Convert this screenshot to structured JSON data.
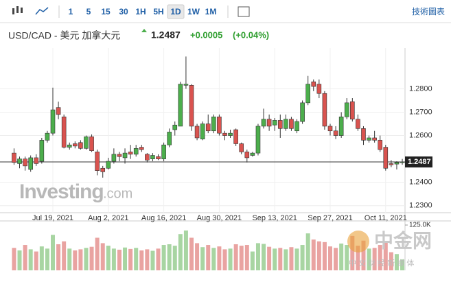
{
  "toolbar": {
    "intervals": [
      "1",
      "5",
      "15",
      "30",
      "1H",
      "5H",
      "1D",
      "1W",
      "1M"
    ],
    "active": "1D",
    "chart_button": "技術圖表"
  },
  "header": {
    "symbol": "USD/CAD - 美元 加拿大元",
    "change": "+0.0005",
    "change_percent": "(+0.04%)"
  },
  "watermarks": {
    "investing": "Investing",
    "investing_suffix": ".com",
    "cngold": "中金网",
    "cngold_sub": "中 文 财 经 新 媒 体"
  },
  "chart_data": {
    "type": "candlestick",
    "last_price": 1.2487,
    "categories": [
      null,
      null,
      null,
      null,
      null,
      null,
      null,
      "Jul 19, 2021",
      null,
      null,
      null,
      null,
      null,
      null,
      null,
      null,
      null,
      "Aug 2, 2021",
      null,
      null,
      null,
      null,
      null,
      null,
      null,
      null,
      null,
      "Aug 16, 2021",
      null,
      null,
      null,
      null,
      null,
      null,
      null,
      null,
      null,
      "Aug 30, 2021",
      null,
      null,
      null,
      null,
      null,
      null,
      null,
      null,
      null,
      "Sep 13, 2021",
      null,
      null,
      null,
      null,
      null,
      null,
      null,
      null,
      null,
      "Sep 27, 2021",
      null,
      null,
      null,
      null,
      null,
      null,
      null,
      null,
      null,
      "Oct 11, 2021",
      null,
      null,
      null
    ],
    "open": [
      1.2525,
      1.248,
      1.25,
      1.2455,
      1.2505,
      1.249,
      1.258,
      1.261,
      1.272,
      1.268,
      1.255,
      1.2565,
      1.257,
      1.2545,
      1.2595,
      1.253,
      1.246,
      1.246,
      1.249,
      1.252,
      1.2505,
      1.253,
      1.252,
      1.255,
      1.252,
      1.25,
      1.251,
      1.25,
      1.256,
      1.2625,
      1.264,
      1.2815,
      1.2815,
      1.264,
      1.2585,
      1.265,
      1.262,
      1.268,
      1.261,
      1.26,
      1.2625,
      1.2565,
      1.253,
      1.2515,
      1.2525,
      1.264,
      1.267,
      1.2645,
      1.2665,
      1.263,
      1.267,
      1.262,
      1.266,
      1.274,
      1.283,
      1.282,
      1.278,
      1.264,
      1.262,
      1.26,
      1.268,
      1.2745,
      1.267,
      1.263,
      1.258,
      1.259,
      1.258,
      1.255,
      1.248,
      1.2478,
      1.2485
    ],
    "high": [
      1.2545,
      1.251,
      1.251,
      1.2515,
      1.252,
      1.259,
      1.262,
      1.2805,
      1.2745,
      1.269,
      1.257,
      1.2575,
      1.258,
      1.26,
      1.2605,
      1.254,
      1.247,
      1.2505,
      1.2545,
      1.253,
      1.2545,
      1.256,
      1.256,
      1.256,
      1.2525,
      1.2525,
      1.252,
      1.257,
      1.263,
      1.266,
      1.283,
      1.2938,
      1.282,
      1.265,
      1.266,
      1.269,
      1.269,
      1.269,
      1.262,
      1.2625,
      1.263,
      1.257,
      1.254,
      1.253,
      1.265,
      1.2715,
      1.269,
      1.2675,
      1.269,
      1.269,
      1.268,
      1.267,
      1.275,
      1.2855,
      1.284,
      1.284,
      1.279,
      1.265,
      1.264,
      1.27,
      1.276,
      1.276,
      1.269,
      1.264,
      1.26,
      1.262,
      1.26,
      1.256,
      1.2495,
      1.249,
      1.25
    ],
    "low": [
      1.2475,
      1.246,
      1.245,
      1.2445,
      1.247,
      1.248,
      1.257,
      1.26,
      1.267,
      1.2545,
      1.254,
      1.2545,
      1.254,
      1.254,
      1.253,
      1.243,
      1.242,
      1.2455,
      1.248,
      1.249,
      1.248,
      1.25,
      1.251,
      1.253,
      1.2485,
      1.249,
      1.2495,
      1.249,
      1.255,
      1.26,
      1.264,
      1.28,
      1.262,
      1.258,
      1.258,
      1.261,
      1.261,
      1.26,
      1.258,
      1.259,
      1.2555,
      1.252,
      1.2485,
      1.251,
      1.2515,
      1.263,
      1.262,
      1.262,
      1.259,
      1.262,
      1.262,
      1.261,
      1.265,
      1.273,
      1.279,
      1.276,
      1.2625,
      1.26,
      1.2585,
      1.259,
      1.267,
      1.266,
      1.262,
      1.256,
      1.257,
      1.257,
      1.253,
      1.245,
      1.2465,
      1.2455,
      1.2475
    ],
    "close": [
      1.2485,
      1.25,
      1.247,
      1.2505,
      1.248,
      1.258,
      1.261,
      1.271,
      1.269,
      1.255,
      1.256,
      1.2555,
      1.2545,
      1.2595,
      1.2535,
      1.245,
      1.2445,
      1.249,
      1.252,
      1.251,
      1.2525,
      1.252,
      1.2545,
      1.254,
      1.2495,
      1.2515,
      1.25,
      1.256,
      1.2615,
      1.2645,
      1.282,
      1.282,
      1.264,
      1.259,
      1.265,
      1.262,
      1.268,
      1.261,
      1.26,
      1.261,
      1.2565,
      1.253,
      1.2505,
      1.2525,
      1.264,
      1.267,
      1.264,
      1.2665,
      1.263,
      1.267,
      1.263,
      1.266,
      1.274,
      1.282,
      1.281,
      1.278,
      1.264,
      1.262,
      1.26,
      1.268,
      1.274,
      1.267,
      1.263,
      1.258,
      1.259,
      1.258,
      1.254,
      1.246,
      1.2475,
      1.2485,
      1.2487
    ],
    "volume": [
      62000,
      55000,
      70000,
      58000,
      52000,
      66000,
      60000,
      98000,
      72000,
      80000,
      60000,
      55000,
      58000,
      62000,
      65000,
      90000,
      75000,
      68000,
      60000,
      57000,
      63000,
      59000,
      62000,
      55000,
      58000,
      54000,
      60000,
      70000,
      72000,
      68000,
      100000,
      110000,
      90000,
      75000,
      64000,
      70000,
      62000,
      66000,
      58000,
      60000,
      72000,
      68000,
      70000,
      52000,
      75000,
      73000,
      65000,
      60000,
      62000,
      58000,
      64000,
      60000,
      70000,
      102000,
      85000,
      80000,
      78000,
      66000,
      62000,
      74000,
      70000,
      95000,
      68000,
      82000,
      60000,
      62000,
      70000,
      76000,
      50000,
      45000,
      30000
    ],
    "ylim": [
      1.227,
      1.2945
    ],
    "yticks": [
      {
        "value": 1.23,
        "label": "1.2300"
      },
      {
        "value": 1.24,
        "label": "1.2400"
      },
      {
        "value": 1.26,
        "label": "1.2600"
      },
      {
        "value": 1.27,
        "label": "1.2700"
      },
      {
        "value": 1.28,
        "label": "1.2800"
      }
    ],
    "volume_ylim": [
      0,
      125000
    ],
    "volume_ticks": [
      {
        "value": 125000,
        "label": "125.0K"
      }
    ],
    "grid": true,
    "up_color": "#4cae4c",
    "down_color": "#d9534f",
    "volume_up_color": "#a8d5a2",
    "volume_down_color": "#e9a3a1"
  }
}
